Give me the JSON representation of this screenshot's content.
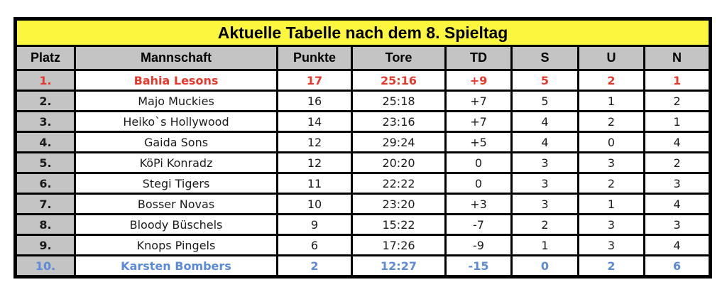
{
  "table": {
    "title": "Aktuelle Tabelle nach dem 8. Spieltag",
    "columns": [
      "Platz",
      "Mannschaft",
      "Punkte",
      "Tore",
      "TD",
      "S",
      "U",
      "N"
    ],
    "rows": [
      {
        "style": "leader",
        "cells": [
          "1.",
          "Bahia Lesons",
          "17",
          "25:16",
          "+9",
          "5",
          "2",
          "1"
        ]
      },
      {
        "style": "",
        "cells": [
          "2.",
          "Majo Muckies",
          "16",
          "25:18",
          "+7",
          "5",
          "1",
          "2"
        ]
      },
      {
        "style": "",
        "cells": [
          "3.",
          "Heiko`s Hollywood",
          "14",
          "23:16",
          "+7",
          "4",
          "2",
          "1"
        ]
      },
      {
        "style": "",
        "cells": [
          "4.",
          "Gaida Sons",
          "12",
          "29:24",
          "+5",
          "4",
          "0",
          "4"
        ]
      },
      {
        "style": "",
        "cells": [
          "5.",
          "KöPi Konradz",
          "12",
          "20:20",
          "0",
          "3",
          "3",
          "2"
        ]
      },
      {
        "style": "",
        "cells": [
          "6.",
          "Stegi Tigers",
          "11",
          "22:22",
          "0",
          "3",
          "2",
          "3"
        ]
      },
      {
        "style": "",
        "cells": [
          "7.",
          "Bosser Novas",
          "10",
          "23:20",
          "+3",
          "3",
          "1",
          "4"
        ]
      },
      {
        "style": "",
        "cells": [
          "8.",
          "Bloody Büschels",
          "9",
          "15:22",
          "-7",
          "2",
          "3",
          "3"
        ]
      },
      {
        "style": "",
        "cells": [
          "9.",
          "Knops Pingels",
          "6",
          "17:26",
          "-9",
          "1",
          "3",
          "4"
        ]
      },
      {
        "style": "last",
        "cells": [
          "10.",
          "Karsten Bombers",
          "2",
          "12:27",
          "-15",
          "0",
          "2",
          "6"
        ]
      }
    ]
  },
  "colors": {
    "title_bg": "#FCF73E",
    "header_bg": "#C4C4C4",
    "leader_text": "#E8392D",
    "last_text": "#5B8AD6",
    "border": "#000000"
  }
}
